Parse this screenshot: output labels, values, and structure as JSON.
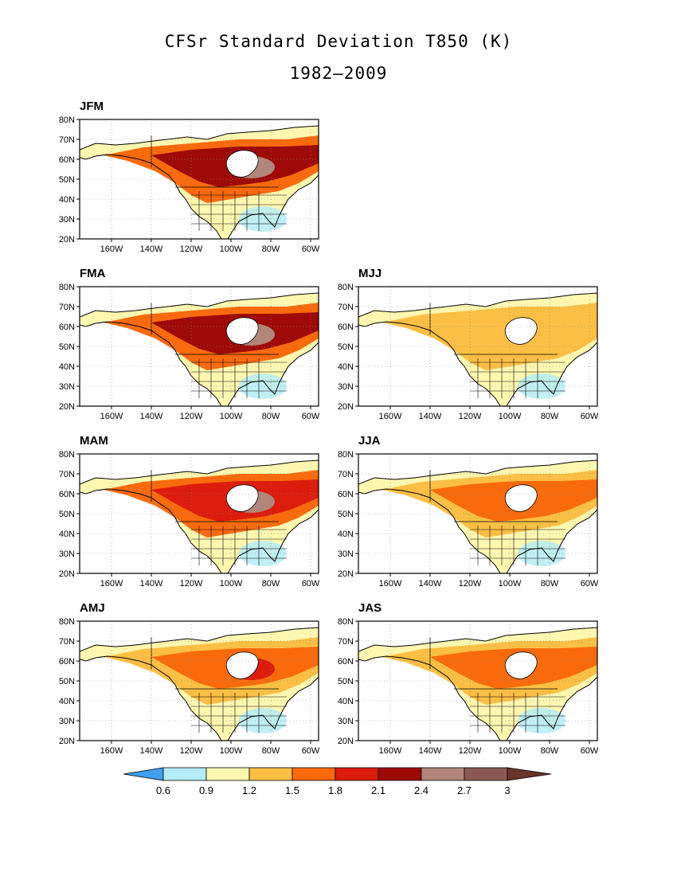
{
  "title": "CFSr Standard Deviation T850 (K)",
  "subtitle": "1982–2009",
  "axes": {
    "lat_ticks": [
      "20N",
      "30N",
      "40N",
      "50N",
      "60N",
      "70N",
      "80N"
    ],
    "lon_ticks": [
      "160W",
      "140W",
      "120W",
      "100W",
      "80W",
      "60W"
    ]
  },
  "panels": [
    {
      "label": "JFM",
      "level": "winter"
    },
    {
      "label": "FMA",
      "level": "winter"
    },
    {
      "label": "MJJ",
      "level": "summer"
    },
    {
      "label": "MAM",
      "level": "spring"
    },
    {
      "label": "JJA",
      "level": "summer2"
    },
    {
      "label": "AMJ",
      "level": "late_spring"
    },
    {
      "label": "JAS",
      "level": "summer3"
    }
  ],
  "colorbar": {
    "labels": [
      "0.6",
      "0.9",
      "1.2",
      "1.5",
      "1.8",
      "2.1",
      "2.4",
      "2.7",
      "3"
    ],
    "colors": [
      "#3f9ff0",
      "#b5ecf5",
      "#fff7b0",
      "#fbbf45",
      "#f96a0d",
      "#dc1c0c",
      "#9e0a07",
      "#b2867a",
      "#8a5a52",
      "#6a3428"
    ]
  }
}
